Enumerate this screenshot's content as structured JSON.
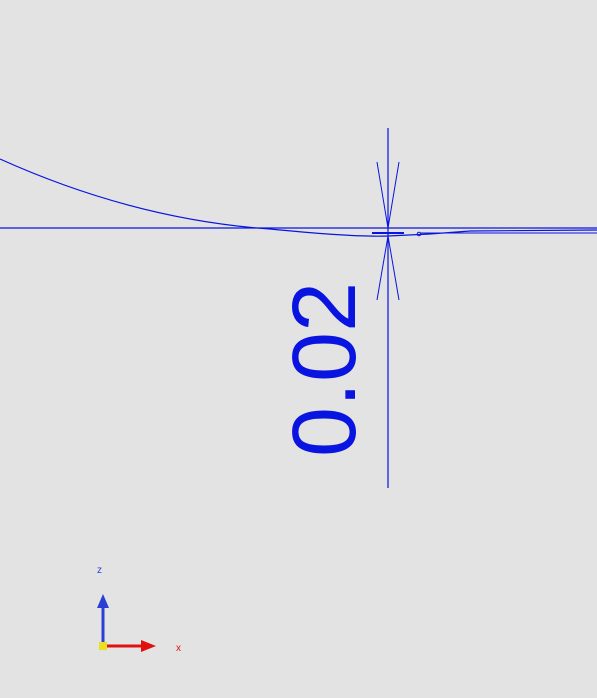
{
  "dimension": {
    "value_label": "0.02"
  },
  "axes_triad": {
    "z_label": "z",
    "x_label": "x"
  },
  "colors": {
    "background": "#e3e3e3",
    "geometry": "#0a14e0",
    "axis_z": "#2b3fd6",
    "axis_x": "#e01010",
    "origin": "#e8e020"
  }
}
